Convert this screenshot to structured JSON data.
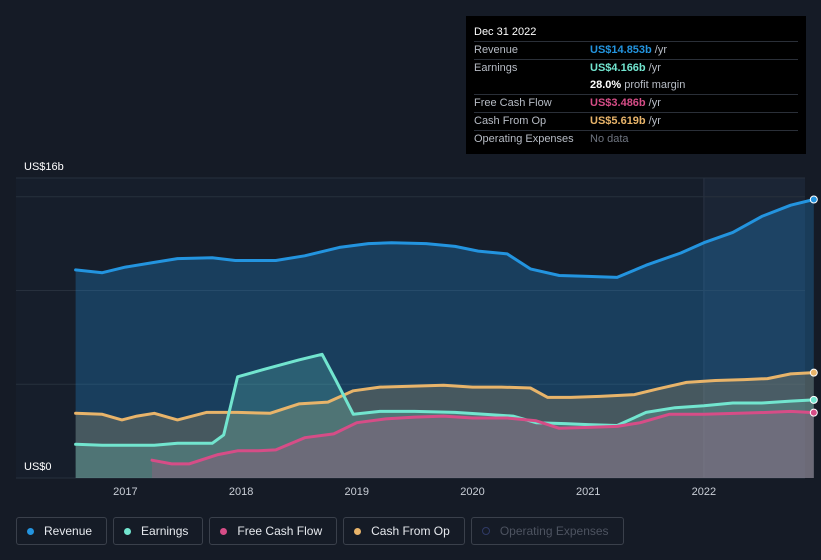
{
  "colors": {
    "background": "#151b26",
    "revenue": "#2394df",
    "earnings": "#72e5cf",
    "fcf": "#d64d87",
    "cfo": "#e8b46a",
    "opex": "#2f3a66"
  },
  "tooltip": {
    "date": "Dec 31 2022",
    "revenue_label": "Revenue",
    "revenue_value": "US$14.853b",
    "revenue_unit": "/yr",
    "earnings_label": "Earnings",
    "earnings_value": "US$4.166b",
    "earnings_unit": "/yr",
    "margin_value": "28.0%",
    "margin_label": "profit margin",
    "fcf_label": "Free Cash Flow",
    "fcf_value": "US$3.486b",
    "fcf_unit": "/yr",
    "cfo_label": "Cash From Op",
    "cfo_value": "US$5.619b",
    "cfo_unit": "/yr",
    "opex_label": "Operating Expenses",
    "opex_value": "No data"
  },
  "legend": [
    {
      "label": "Revenue",
      "color": "#2394df",
      "enabled": true
    },
    {
      "label": "Earnings",
      "color": "#72e5cf",
      "enabled": true
    },
    {
      "label": "Free Cash Flow",
      "color": "#d64d87",
      "enabled": true
    },
    {
      "label": "Cash From Op",
      "color": "#e8b46a",
      "enabled": true
    },
    {
      "label": "Operating Expenses",
      "color": "#2f3a66",
      "enabled": false
    }
  ],
  "chart_data": {
    "type": "area",
    "y_top_label": "US$16b",
    "y_bottom_label": "US$0",
    "ylim": [
      0,
      16
    ],
    "xlim": [
      2016.3,
      2022.95
    ],
    "x_tick_labels": [
      "2017",
      "2018",
      "2019",
      "2020",
      "2021",
      "2022"
    ],
    "x_ticks": [
      2017,
      2018,
      2019,
      2020,
      2021,
      2022
    ],
    "highlight_from": 2022.0,
    "grid": true,
    "series": [
      {
        "name": "Revenue",
        "key": "revenue",
        "x": [
          2016.57,
          2016.8,
          2017.0,
          2017.25,
          2017.45,
          2017.75,
          2017.95,
          2018.3,
          2018.55,
          2018.85,
          2019.1,
          2019.3,
          2019.6,
          2019.85,
          2020.05,
          2020.3,
          2020.5,
          2020.75,
          2021.0,
          2021.25,
          2021.5,
          2021.8,
          2022.0,
          2022.25,
          2022.5,
          2022.75,
          2022.95
        ],
        "y": [
          11.1,
          10.95,
          11.25,
          11.5,
          11.7,
          11.75,
          11.6,
          11.6,
          11.85,
          12.3,
          12.5,
          12.55,
          12.5,
          12.35,
          12.1,
          11.95,
          11.15,
          10.8,
          10.75,
          10.7,
          11.35,
          12.0,
          12.55,
          13.1,
          13.95,
          14.55,
          14.853
        ]
      },
      {
        "name": "Earnings",
        "key": "earnings",
        "x": [
          2016.57,
          2016.8,
          2017.0,
          2017.25,
          2017.45,
          2017.75,
          2017.85,
          2017.97,
          2018.2,
          2018.5,
          2018.7,
          2018.82,
          2018.97,
          2019.2,
          2019.5,
          2019.85,
          2020.1,
          2020.35,
          2020.55,
          2020.8,
          2021.0,
          2021.25,
          2021.5,
          2021.75,
          2022.0,
          2022.25,
          2022.5,
          2022.75,
          2022.95
        ],
        "y": [
          1.8,
          1.75,
          1.75,
          1.75,
          1.85,
          1.85,
          2.3,
          5.4,
          5.8,
          6.3,
          6.6,
          5.2,
          3.4,
          3.55,
          3.55,
          3.5,
          3.4,
          3.3,
          2.95,
          2.9,
          2.85,
          2.8,
          3.5,
          3.75,
          3.85,
          4.0,
          4.0,
          4.1,
          4.166
        ]
      },
      {
        "name": "Free Cash Flow",
        "key": "fcf",
        "x": [
          2017.23,
          2017.4,
          2017.55,
          2017.8,
          2017.97,
          2018.15,
          2018.3,
          2018.55,
          2018.8,
          2019.0,
          2019.25,
          2019.5,
          2019.75,
          2020.0,
          2020.3,
          2020.55,
          2020.75,
          2021.0,
          2021.25,
          2021.45,
          2021.7,
          2022.0,
          2022.3,
          2022.55,
          2022.75,
          2022.95
        ],
        "y": [
          0.95,
          0.75,
          0.75,
          1.25,
          1.45,
          1.45,
          1.5,
          2.15,
          2.35,
          2.95,
          3.15,
          3.25,
          3.3,
          3.2,
          3.2,
          3.05,
          2.65,
          2.7,
          2.75,
          2.95,
          3.4,
          3.4,
          3.45,
          3.5,
          3.55,
          3.486
        ]
      },
      {
        "name": "Cash From Op",
        "key": "cfo",
        "x": [
          2016.57,
          2016.8,
          2016.97,
          2017.1,
          2017.25,
          2017.45,
          2017.7,
          2017.97,
          2018.25,
          2018.5,
          2018.75,
          2018.97,
          2019.2,
          2019.5,
          2019.75,
          2020.0,
          2020.25,
          2020.5,
          2020.65,
          2020.85,
          2021.1,
          2021.4,
          2021.6,
          2021.85,
          2022.1,
          2022.35,
          2022.55,
          2022.75,
          2022.95
        ],
        "y": [
          3.45,
          3.4,
          3.1,
          3.3,
          3.45,
          3.1,
          3.5,
          3.5,
          3.45,
          3.95,
          4.05,
          4.65,
          4.85,
          4.9,
          4.95,
          4.85,
          4.85,
          4.8,
          4.3,
          4.3,
          4.35,
          4.45,
          4.75,
          5.1,
          5.2,
          5.25,
          5.3,
          5.55,
          5.619
        ]
      }
    ]
  }
}
